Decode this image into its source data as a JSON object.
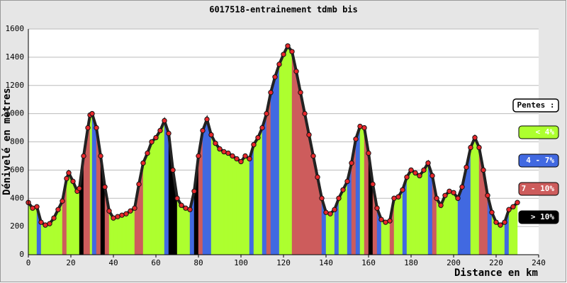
{
  "chart_data": {
    "type": "elevation-profile",
    "title": "6017518-entrainement tdmb bis",
    "x_label": "Distance en km",
    "y_label": "Dénivelé en mètres",
    "legend_title": "Pentes :",
    "legend": [
      {
        "name": "< 4%",
        "color": "#adff2f",
        "text_color": "#ffffff"
      },
      {
        "name": "4 - 7%",
        "color": "#4169e1",
        "text_color": "#ffffff"
      },
      {
        "name": "7 - 10%",
        "color": "#cd5c5c",
        "text_color": "#ffffff"
      },
      {
        "name": "> 10%",
        "color": "#000000",
        "text_color": "#ffffff"
      }
    ],
    "point_color": "#e8282c",
    "x": [
      0,
      2,
      4,
      6,
      8,
      10,
      12,
      14,
      16,
      18,
      19,
      21,
      23,
      24,
      26,
      28,
      29,
      30,
      32,
      34,
      36,
      38,
      40,
      42,
      44,
      46,
      48,
      50,
      52,
      54,
      56,
      58,
      60,
      62,
      64,
      66,
      68,
      70,
      72,
      74,
      76,
      78,
      80,
      82,
      84,
      86,
      88,
      90,
      92,
      94,
      96,
      98,
      100,
      102,
      104,
      106,
      108,
      110,
      112,
      114,
      116,
      118,
      120,
      122,
      124,
      126,
      128,
      130,
      132,
      134,
      136,
      138,
      140,
      142,
      144,
      146,
      148,
      150,
      152,
      154,
      156,
      158,
      160,
      162,
      164,
      166,
      168,
      170,
      172,
      174,
      176,
      178,
      180,
      182,
      184,
      186,
      188,
      190,
      192,
      194,
      196,
      198,
      200,
      202,
      204,
      206,
      208,
      210,
      212,
      214,
      216,
      218,
      220,
      222,
      224,
      226,
      228,
      230
    ],
    "values": [
      370,
      330,
      340,
      230,
      210,
      220,
      260,
      320,
      380,
      540,
      580,
      520,
      450,
      470,
      700,
      900,
      990,
      1000,
      900,
      700,
      480,
      310,
      260,
      270,
      280,
      290,
      310,
      330,
      500,
      650,
      720,
      800,
      830,
      880,
      950,
      860,
      600,
      400,
      350,
      330,
      320,
      450,
      700,
      880,
      960,
      850,
      790,
      750,
      730,
      720,
      700,
      680,
      660,
      700,
      680,
      780,
      830,
      900,
      1000,
      1150,
      1260,
      1350,
      1420,
      1480,
      1440,
      1300,
      1150,
      1000,
      850,
      700,
      550,
      400,
      300,
      290,
      320,
      400,
      460,
      520,
      650,
      820,
      910,
      900,
      720,
      500,
      330,
      250,
      230,
      240,
      400,
      410,
      460,
      550,
      600,
      580,
      560,
      600,
      650,
      560,
      400,
      350,
      420,
      450,
      440,
      400,
      480,
      620,
      760,
      830,
      760,
      600,
      420,
      300,
      230,
      210,
      230,
      320,
      340,
      370
    ],
    "slope_class": [
      0,
      0,
      1,
      0,
      0,
      0,
      0,
      0,
      2,
      0,
      0,
      0,
      0,
      3,
      2,
      2,
      0,
      1,
      2,
      3,
      2,
      0,
      0,
      0,
      0,
      0,
      0,
      2,
      2,
      0,
      0,
      0,
      0,
      0,
      1,
      3,
      3,
      0,
      0,
      0,
      1,
      3,
      2,
      1,
      1,
      0,
      0,
      0,
      0,
      0,
      0,
      0,
      0,
      0,
      1,
      0,
      0,
      1,
      2,
      1,
      1,
      0,
      0,
      0,
      2,
      2,
      2,
      2,
      2,
      2,
      2,
      1,
      0,
      0,
      1,
      0,
      0,
      1,
      2,
      1,
      0,
      2,
      3,
      2,
      1,
      0,
      0,
      2,
      0,
      0,
      1,
      0,
      0,
      0,
      0,
      0,
      1,
      2,
      0,
      0,
      0,
      0,
      0,
      1,
      1,
      1,
      0,
      0,
      2,
      2,
      1,
      0,
      0,
      0,
      1,
      0,
      0
    ],
    "xlim": [
      0,
      240
    ],
    "ylim": [
      0,
      1600
    ],
    "xticks": [
      0,
      20,
      40,
      60,
      80,
      100,
      120,
      140,
      160,
      180,
      200,
      220,
      240
    ],
    "yticks": [
      0,
      200,
      400,
      600,
      800,
      1000,
      1200,
      1400,
      1600
    ],
    "grid": true
  }
}
